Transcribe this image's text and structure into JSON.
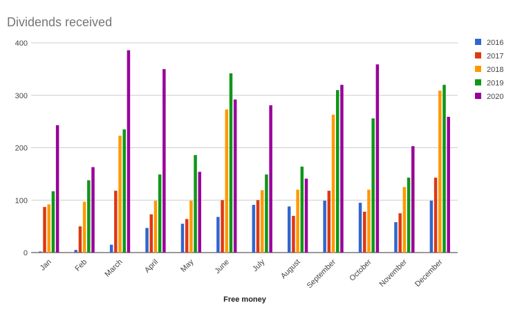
{
  "chart_data": {
    "type": "bar",
    "title": "Dividends received",
    "xlabel": "Free money",
    "ylabel": "",
    "ylim": [
      0,
      400
    ],
    "yticks": [
      0,
      100,
      200,
      300,
      400
    ],
    "grid": true,
    "legend_position": "right",
    "categories": [
      "Jan",
      "Feb",
      "March",
      "April",
      "May",
      "June",
      "July",
      "August",
      "September",
      "October",
      "November",
      "December"
    ],
    "series": [
      {
        "name": "2016",
        "color": "#3366cc",
        "values": [
          2,
          5,
          15,
          47,
          55,
          68,
          91,
          88,
          99,
          95,
          58,
          99
        ]
      },
      {
        "name": "2017",
        "color": "#dc3912",
        "values": [
          87,
          50,
          118,
          73,
          64,
          100,
          100,
          70,
          118,
          78,
          75,
          143
        ]
      },
      {
        "name": "2018",
        "color": "#ff9900",
        "values": [
          92,
          97,
          223,
          99,
          99,
          273,
          119,
          120,
          263,
          120,
          125,
          309
        ]
      },
      {
        "name": "2019",
        "color": "#109618",
        "values": [
          117,
          138,
          235,
          149,
          186,
          342,
          149,
          164,
          310,
          256,
          143,
          320
        ]
      },
      {
        "name": "2020",
        "color": "#990099",
        "values": [
          243,
          163,
          386,
          350,
          154,
          292,
          281,
          141,
          320,
          359,
          203,
          259
        ]
      }
    ]
  }
}
